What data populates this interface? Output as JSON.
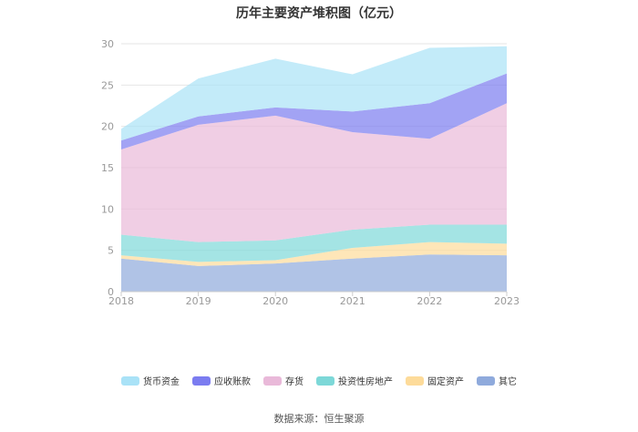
{
  "chart_data": {
    "type": "area",
    "stacked": true,
    "title": "历年主要资产堆积图（亿元）",
    "x": [
      "2018",
      "2019",
      "2020",
      "2021",
      "2022",
      "2023"
    ],
    "ylim": [
      0,
      30
    ],
    "yticks": [
      0,
      5,
      10,
      15,
      20,
      25,
      30
    ],
    "grid": true,
    "legend_position": "bottom",
    "series": [
      {
        "name": "其它",
        "color": "#8faadc",
        "values": [
          4.0,
          3.1,
          3.4,
          4.0,
          4.5,
          4.4
        ]
      },
      {
        "name": "固定资产",
        "color": "#fddb9a",
        "values": [
          0.4,
          0.5,
          0.4,
          1.3,
          1.5,
          1.4
        ]
      },
      {
        "name": "投资性房地产",
        "color": "#7dd8d8",
        "values": [
          2.5,
          2.4,
          2.4,
          2.2,
          2.1,
          2.3
        ]
      },
      {
        "name": "存货",
        "color": "#e9b9d9",
        "values": [
          10.3,
          14.2,
          15.1,
          11.8,
          10.4,
          14.7
        ]
      },
      {
        "name": "应收账款",
        "color": "#7b7cf0",
        "values": [
          1.1,
          1.0,
          1.0,
          2.5,
          4.3,
          3.6
        ]
      },
      {
        "name": "货币资金",
        "color": "#a9e2f7",
        "values": [
          1.4,
          4.6,
          5.9,
          4.5,
          6.7,
          3.3
        ]
      }
    ]
  },
  "source": "数据来源：恒生聚源"
}
